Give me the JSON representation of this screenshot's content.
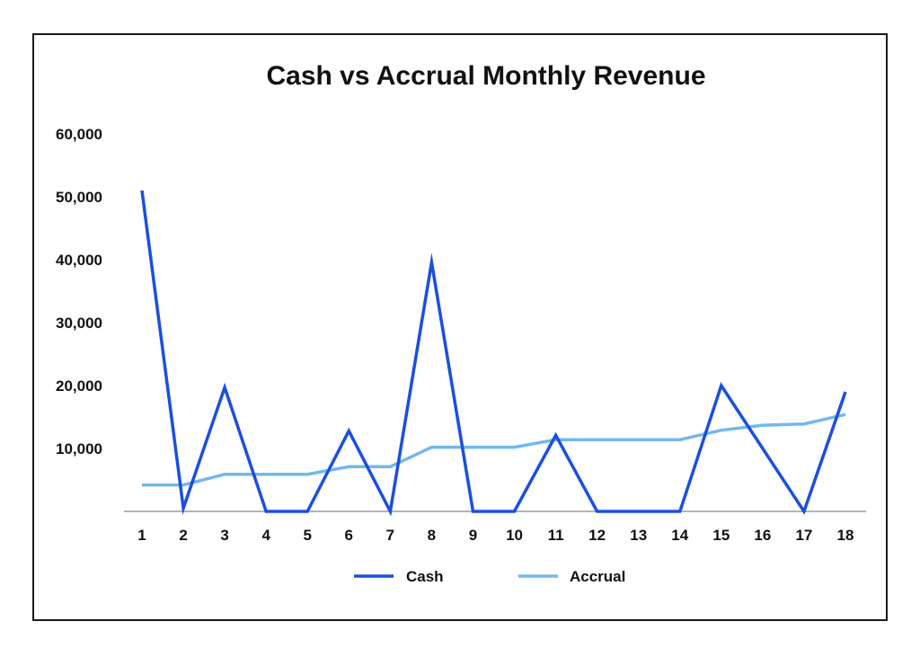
{
  "chart_data": {
    "type": "line",
    "title": "Cash vs Accrual Monthly Revenue",
    "xlabel": "",
    "ylabel": "",
    "x": [
      1,
      2,
      3,
      4,
      5,
      6,
      7,
      8,
      9,
      10,
      11,
      12,
      13,
      14,
      15,
      16,
      17,
      18
    ],
    "x_tick_labels": [
      "1",
      "2",
      "3",
      "4",
      "5",
      "6",
      "7",
      "8",
      "9",
      "10",
      "11",
      "12",
      "13",
      "14",
      "15",
      "16",
      "17",
      "18"
    ],
    "y_ticks": [
      10000,
      20000,
      30000,
      40000,
      50000,
      60000
    ],
    "y_tick_labels": [
      "10,000",
      "20,000",
      "30,000",
      "40,000",
      "50,000",
      "60,000"
    ],
    "ylim": [
      0,
      60000
    ],
    "grid": false,
    "legend_position": "bottom",
    "series": [
      {
        "name": "Cash",
        "color": "#1a4fe0",
        "values": [
          51000,
          500,
          19700,
          0,
          0,
          12800,
          0,
          39600,
          0,
          0,
          12100,
          0,
          0,
          0,
          20000,
          10000,
          0,
          19000
        ]
      },
      {
        "name": "Accrual",
        "color": "#72b8ec",
        "values": [
          4200,
          4200,
          5900,
          5900,
          5900,
          7100,
          7100,
          10200,
          10200,
          10200,
          11400,
          11400,
          11400,
          11400,
          12900,
          13700,
          13900,
          15400
        ]
      }
    ]
  }
}
